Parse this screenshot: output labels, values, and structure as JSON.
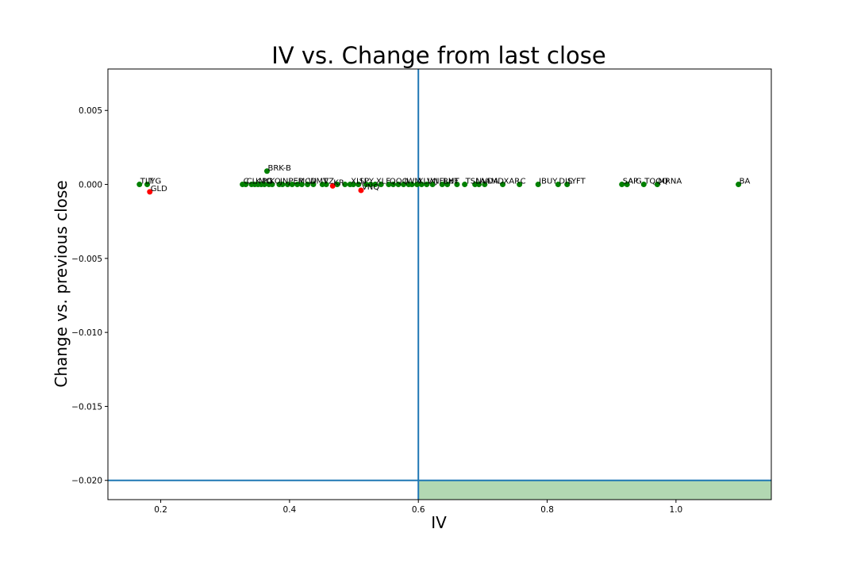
{
  "chart_data": {
    "type": "scatter",
    "title": "IV vs. Change from last close",
    "xlabel": "IV",
    "ylabel": "Change vs. previous close",
    "xlim": [
      0.118,
      1.148
    ],
    "ylim": [
      -0.0213,
      0.0078
    ],
    "xticks": [
      "0.2",
      "0.4",
      "0.6",
      "0.8",
      "1.0"
    ],
    "yticks": [
      "0.005",
      "0.000",
      "−0.005",
      "−0.010",
      "−0.015",
      "−0.020"
    ],
    "xtick_values": [
      0.2,
      0.4,
      0.6,
      0.8,
      1.0
    ],
    "ytick_values": [
      0.005,
      0.0,
      -0.005,
      -0.01,
      -0.015,
      -0.02
    ],
    "threshold_lines": {
      "x": 0.6,
      "y": -0.02
    },
    "colors": {
      "positive": "#008000",
      "negative": "#ff0000",
      "line": "#1f77b4",
      "region": "#b2d8b2"
    },
    "points": [
      {
        "label": "TLT",
        "x": 0.167,
        "y": 0.0
      },
      {
        "label": "IYG",
        "x": 0.179,
        "y": 0.0
      },
      {
        "label": "GLD",
        "x": 0.183,
        "y": -0.0005
      },
      {
        "label": "BRK-B",
        "x": 0.365,
        "y": 0.0009
      },
      {
        "label": "C",
        "x": 0.327,
        "y": 0.0
      },
      {
        "label": "CL",
        "x": 0.332,
        "y": 0.0
      },
      {
        "label": "K",
        "x": 0.346,
        "y": 0.0
      },
      {
        "label": "MO",
        "x": 0.351,
        "y": 0.0
      },
      {
        "label": "PG",
        "x": 0.356,
        "y": 0.0
      },
      {
        "label": "KO",
        "x": 0.368,
        "y": 0.0
      },
      {
        "label": "JNJ",
        "x": 0.384,
        "y": 0.0
      },
      {
        "label": "PEP",
        "x": 0.397,
        "y": 0.0
      },
      {
        "label": "MCD",
        "x": 0.412,
        "y": 0.0
      },
      {
        "label": "WMT",
        "x": 0.428,
        "y": 0.0
      },
      {
        "label": "VZ",
        "x": 0.451,
        "y": 0.0
      },
      {
        "label": "KR",
        "x": 0.467,
        "y": -0.0001
      },
      {
        "label": "XLU",
        "x": 0.494,
        "y": 0.0
      },
      {
        "label": "SPY",
        "x": 0.507,
        "y": 0.0
      },
      {
        "label": "VNQ",
        "x": 0.511,
        "y": -0.0004
      },
      {
        "label": "XLF",
        "x": 0.533,
        "y": 0.0
      },
      {
        "label": "QQQ",
        "x": 0.554,
        "y": 0.0
      },
      {
        "label": "IWM",
        "x": 0.577,
        "y": 0.0
      },
      {
        "label": "XLV",
        "x": 0.598,
        "y": 0.0
      },
      {
        "label": "IXJ",
        "x": 0.613,
        "y": 0.0
      },
      {
        "label": "NFLX",
        "x": 0.622,
        "y": 0.0
      },
      {
        "label": "RUT",
        "x": 0.637,
        "y": 0.0
      },
      {
        "label": "HF",
        "x": 0.645,
        "y": 0.0
      },
      {
        "label": "TSLA",
        "x": 0.672,
        "y": 0.0
      },
      {
        "label": "NVDA",
        "x": 0.688,
        "y": 0.0
      },
      {
        "label": "AMD",
        "x": 0.703,
        "y": 0.0
      },
      {
        "label": "XAR",
        "x": 0.731,
        "y": 0.0
      },
      {
        "label": "C",
        "x": 0.757,
        "y": 0.0
      },
      {
        "label": "IBUY",
        "x": 0.786,
        "y": 0.0
      },
      {
        "label": "DIS",
        "x": 0.817,
        "y": 0.0
      },
      {
        "label": "LYFT",
        "x": 0.831,
        "y": 0.0
      },
      {
        "label": "SAP",
        "x": 0.916,
        "y": 0.0
      },
      {
        "label": "AIG",
        "x": 0.924,
        "y": 0.0
      },
      {
        "label": "TQQQ",
        "x": 0.95,
        "y": 0.0
      },
      {
        "label": "MRNA",
        "x": 0.971,
        "y": 0.0
      },
      {
        "label": "BA",
        "x": 1.097,
        "y": 0.0
      }
    ],
    "unlabeled_points": [
      {
        "x": 0.341,
        "y": 0.0
      },
      {
        "x": 0.361,
        "y": 0.0
      },
      {
        "x": 0.373,
        "y": 0.0
      },
      {
        "x": 0.389,
        "y": 0.0
      },
      {
        "x": 0.404,
        "y": 0.0
      },
      {
        "x": 0.419,
        "y": 0.0
      },
      {
        "x": 0.437,
        "y": 0.0
      },
      {
        "x": 0.457,
        "y": 0.0
      },
      {
        "x": 0.474,
        "y": 0.0
      },
      {
        "x": 0.486,
        "y": 0.0
      },
      {
        "x": 0.499,
        "y": 0.0
      },
      {
        "x": 0.519,
        "y": 0.0
      },
      {
        "x": 0.526,
        "y": 0.0
      },
      {
        "x": 0.542,
        "y": 0.0
      },
      {
        "x": 0.561,
        "y": 0.0
      },
      {
        "x": 0.569,
        "y": 0.0
      },
      {
        "x": 0.585,
        "y": 0.0
      },
      {
        "x": 0.59,
        "y": 0.0
      },
      {
        "x": 0.605,
        "y": 0.0
      },
      {
        "x": 0.66,
        "y": 0.0
      },
      {
        "x": 0.694,
        "y": 0.0
      }
    ]
  }
}
